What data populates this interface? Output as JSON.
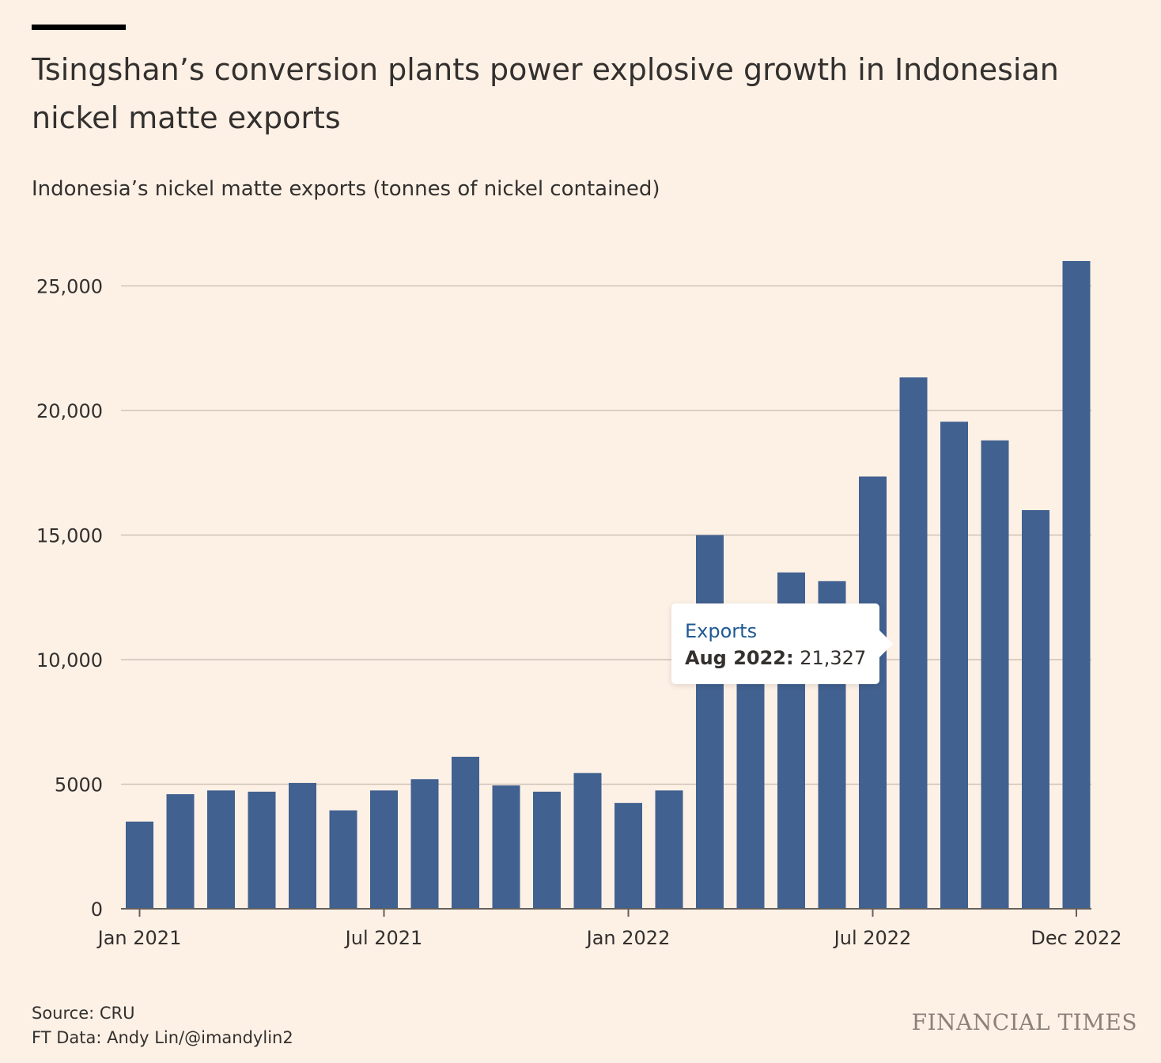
{
  "header": {
    "title": "Tsingshan’s conversion plants power explosive growth in Indonesian nickel matte exports",
    "subtitle": "Indonesia’s nickel matte exports (tonnes of nickel contained)"
  },
  "chart_data": {
    "type": "bar",
    "title": "Tsingshan’s conversion plants power explosive growth in Indonesian nickel matte exports",
    "subtitle": "Indonesia’s nickel matte exports (tonnes of nickel contained)",
    "xlabel": "",
    "ylabel": "",
    "ylim": [
      0,
      26000
    ],
    "grid": true,
    "bar_color": "#416190",
    "categories": [
      "Jan 2021",
      "Feb 2021",
      "Mar 2021",
      "Apr 2021",
      "May 2021",
      "Jun 2021",
      "Jul 2021",
      "Aug 2021",
      "Sep 2021",
      "Oct 2021",
      "Nov 2021",
      "Dec 2021",
      "Jan 2022",
      "Feb 2022",
      "Mar 2022",
      "Apr 2022",
      "May 2022",
      "Jun 2022",
      "Jul 2022",
      "Aug 2022",
      "Sep 2022",
      "Oct 2022",
      "Nov 2022",
      "Dec 2022"
    ],
    "series": [
      {
        "name": "Exports",
        "values": [
          3500,
          4600,
          4750,
          4700,
          5050,
          3950,
          4750,
          5200,
          6100,
          4950,
          4700,
          5450,
          4250,
          4750,
          15000,
          12000,
          13500,
          13150,
          17350,
          21327,
          19550,
          18800,
          16000,
          26000
        ]
      }
    ],
    "y_ticks": [
      {
        "value": 0,
        "label": "0"
      },
      {
        "value": 5000,
        "label": "5000"
      },
      {
        "value": 10000,
        "label": "10,000"
      },
      {
        "value": 15000,
        "label": "15,000"
      },
      {
        "value": 20000,
        "label": "20,000"
      },
      {
        "value": 25000,
        "label": "25,000"
      }
    ],
    "x_ticks": [
      {
        "index": 0,
        "label": "Jan 2021"
      },
      {
        "index": 6,
        "label": "Jul 2021"
      },
      {
        "index": 12,
        "label": "Jan 2022"
      },
      {
        "index": 18,
        "label": "Jul 2022"
      },
      {
        "index": 23,
        "label": "Dec 2022"
      }
    ]
  },
  "tooltip": {
    "series": "Exports",
    "month": "Aug 2022:",
    "value": "21,327",
    "bar_index": 19
  },
  "footer": {
    "source": "Source: CRU",
    "credit": "FT Data: Andy Lin/@imandylin2",
    "brand": "FINANCIAL TIMES"
  },
  "colors": {
    "background": "#fdf1e6",
    "bar": "#416190",
    "gridline": "#cfc3b8",
    "axis": "#66605c",
    "tooltip_series": "#1f5a94",
    "brand": "#8c8079"
  }
}
